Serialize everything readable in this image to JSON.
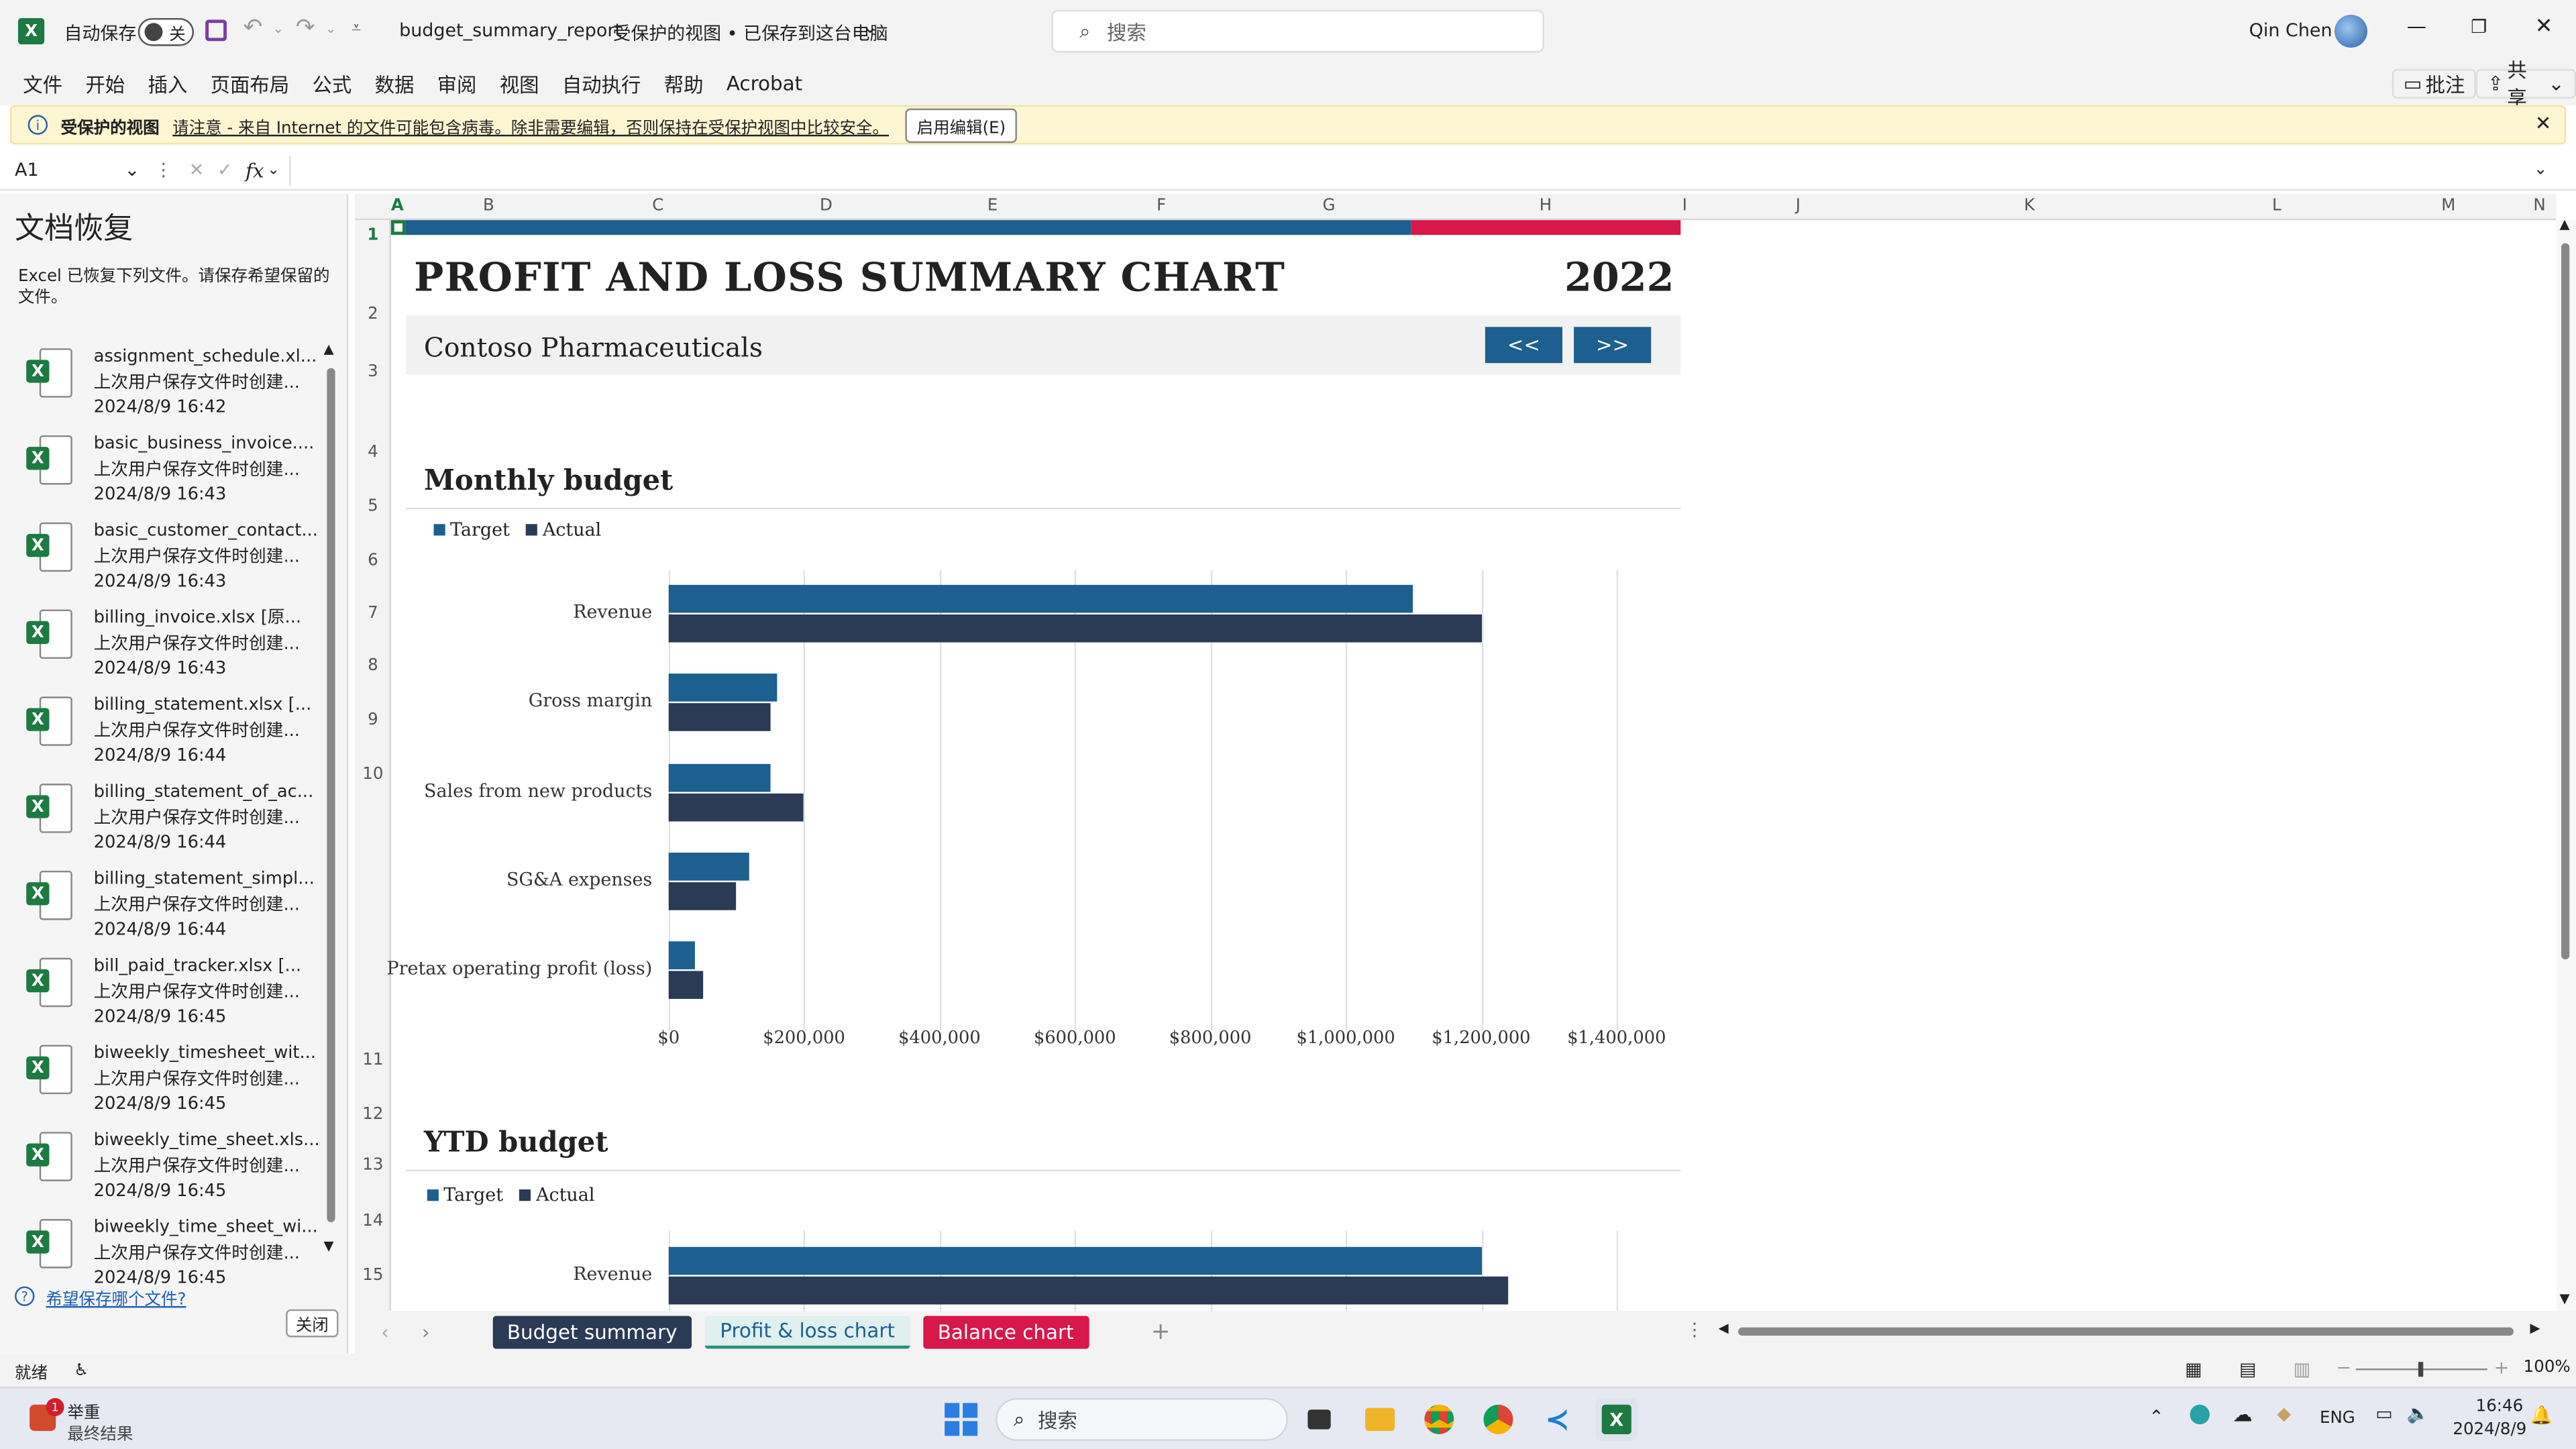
{
  "app": {
    "autosave_label": "自动保存",
    "autosave_state": "关",
    "file_title": "budget_summary_report",
    "view_status": "受保护的视图 • 已保存到这台电脑",
    "search_placeholder": "搜索",
    "user_name": "Qin Chen"
  },
  "menu": [
    "文件",
    "开始",
    "插入",
    "页面布局",
    "公式",
    "数据",
    "审阅",
    "视图",
    "自动执行",
    "帮助",
    "Acrobat"
  ],
  "menu_right": {
    "comments": "批注",
    "share": "共享"
  },
  "protected_bar": {
    "title": "受保护的视图",
    "message": "请注意 - 来自 Internet 的文件可能包含病毒。除非需要编辑，否则保持在受保护视图中比较安全。",
    "enable_button": "启用编辑(E)"
  },
  "formula": {
    "name_box": "A1",
    "fx": "fx"
  },
  "recovery": {
    "title": "文档恢复",
    "description": "Excel 已恢复下列文件。请保存希望保留的文件。",
    "files": [
      {
        "name": "assignment_schedule.xl...",
        "status": "上次用户保存文件时创建...",
        "time": "2024/8/9 16:42"
      },
      {
        "name": "basic_business_invoice....",
        "status": "上次用户保存文件时创建...",
        "time": "2024/8/9 16:43"
      },
      {
        "name": "basic_customer_contact...",
        "status": "上次用户保存文件时创建...",
        "time": "2024/8/9 16:43"
      },
      {
        "name": "billing_invoice.xlsx  [原...",
        "status": "上次用户保存文件时创建...",
        "time": "2024/8/9 16:43"
      },
      {
        "name": "billing_statement.xlsx  [...",
        "status": "上次用户保存文件时创建...",
        "time": "2024/8/9 16:44"
      },
      {
        "name": "billing_statement_of_ac...",
        "status": "上次用户保存文件时创建...",
        "time": "2024/8/9 16:44"
      },
      {
        "name": "billing_statement_simpl...",
        "status": "上次用户保存文件时创建...",
        "time": "2024/8/9 16:44"
      },
      {
        "name": "bill_paid_tracker.xlsx  [...",
        "status": "上次用户保存文件时创建...",
        "time": "2024/8/9 16:45"
      },
      {
        "name": "biweekly_timesheet_wit...",
        "status": "上次用户保存文件时创建...",
        "time": "2024/8/9 16:45"
      },
      {
        "name": "biweekly_time_sheet.xls...",
        "status": "上次用户保存文件时创建...",
        "time": "2024/8/9 16:45"
      },
      {
        "name": "biweekly_time_sheet_wi...",
        "status": "上次用户保存文件时创建...",
        "time": "2024/8/9 16:45"
      }
    ],
    "help_link": "希望保存哪个文件?",
    "close_button": "关闭"
  },
  "columns": [
    "A",
    "B",
    "C",
    "D",
    "E",
    "F",
    "G",
    "H",
    "I",
    "J",
    "K",
    "L",
    "M",
    "N"
  ],
  "rows": [
    "1",
    "2",
    "3",
    "4",
    "5",
    "6",
    "7",
    "8",
    "9",
    "10",
    "11",
    "12",
    "13",
    "14",
    "15"
  ],
  "report": {
    "title": "PROFIT AND LOSS SUMMARY CHART",
    "year": "2022",
    "company": "Contoso Pharmaceuticals",
    "prev_button": "<<",
    "next_button": ">>",
    "accent_blue": "#1d5f8f",
    "accent_red": "#d8174a"
  },
  "chart_data": [
    {
      "type": "bar",
      "orientation": "horizontal",
      "title": "Monthly budget",
      "categories": [
        "Revenue",
        "Gross margin",
        "Sales from new products",
        "SG&A expenses",
        "Pretax operating profit (loss)"
      ],
      "series": [
        {
          "name": "Target",
          "color": "#1d5f8f",
          "values": [
            1100000,
            160000,
            150000,
            120000,
            40000
          ]
        },
        {
          "name": "Actual",
          "color": "#2b3a55",
          "values": [
            1200000,
            150000,
            200000,
            100000,
            50000
          ]
        }
      ],
      "xlim": [
        0,
        1400000
      ],
      "xticks": [
        "$0",
        "$200,000",
        "$400,000",
        "$600,000",
        "$800,000",
        "$1,000,000",
        "$1,200,000",
        "$1,400,000"
      ],
      "legend": "top-left",
      "grid": true
    },
    {
      "type": "bar",
      "orientation": "horizontal",
      "title": "YTD budget",
      "categories": [
        "Revenue"
      ],
      "series": [
        {
          "name": "Target",
          "color": "#1d5f8f",
          "values": [
            1200000
          ]
        },
        {
          "name": "Actual",
          "color": "#2b3a55",
          "values": [
            1240000
          ]
        }
      ],
      "xlim": [
        0,
        1400000
      ],
      "legend": "top-left",
      "grid": true
    }
  ],
  "tabs": [
    {
      "label": "Budget summary",
      "color": "#2b3a55",
      "text": "#ffffff"
    },
    {
      "label": "Profit & loss chart",
      "color": "#dff0ef",
      "text": "#1d5f8f"
    },
    {
      "label": "Balance chart",
      "color": "#d8174a",
      "text": "#ffffff"
    }
  ],
  "status": {
    "ready": "就绪",
    "zoom": "100%"
  },
  "taskbar": {
    "weather_title": "举重",
    "weather_sub": "最终结果",
    "search": "搜索",
    "lang": "ENG",
    "time": "16:46",
    "date": "2024/8/9",
    "notification_count": "1"
  }
}
